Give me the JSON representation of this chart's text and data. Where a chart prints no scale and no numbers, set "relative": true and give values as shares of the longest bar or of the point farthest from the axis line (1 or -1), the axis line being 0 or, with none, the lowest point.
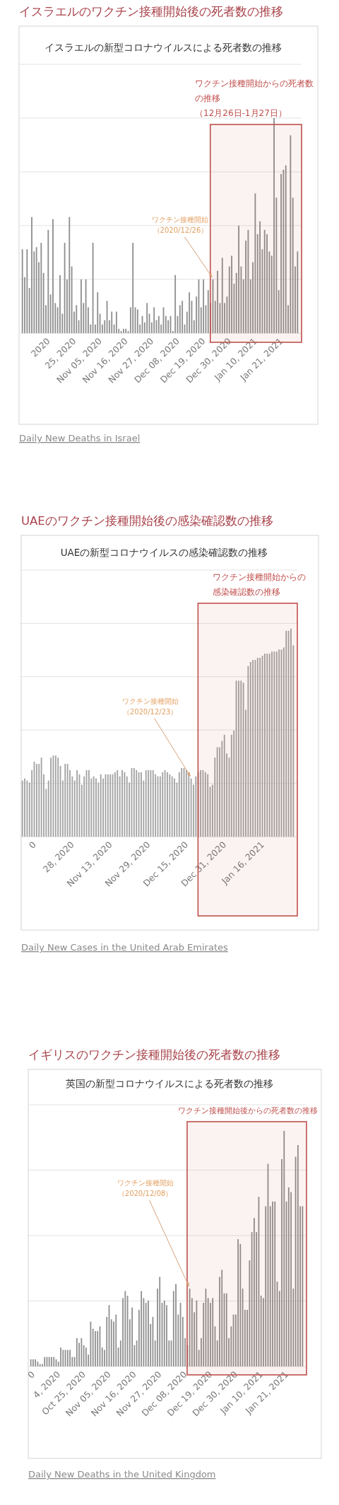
{
  "chart_data": [
    {
      "type": "bar",
      "title": "イスラエルのワクチン接種開始後の死者数の推移",
      "subtitle": "イスラエルの新型コロナウイルスによる死者数の推移",
      "relative": true,
      "grid": "y",
      "tick_labels": "x",
      "color": "#8f8f8f",
      "x": [
        "2020-10-02",
        "2020-10-03",
        "2020-10-04",
        "2020-10-05",
        "2020-10-06",
        "2020-10-07",
        "2020-10-08",
        "2020-10-09",
        "2020-10-10",
        "2020-10-11",
        "2020-10-12",
        "2020-10-13",
        "2020-10-14",
        "2020-10-15",
        "2020-10-16",
        "2020-10-17",
        "2020-10-18",
        "2020-10-19",
        "2020-10-20",
        "2020-10-21",
        "2020-10-22",
        "2020-10-23",
        "2020-10-24",
        "2020-10-25",
        "2020-10-26",
        "2020-10-27",
        "2020-10-28",
        "2020-10-29",
        "2020-10-30",
        "2020-10-31",
        "2020-11-01",
        "2020-11-02",
        "2020-11-03",
        "2020-11-04",
        "2020-11-05",
        "2020-11-06",
        "2020-11-07",
        "2020-11-08",
        "2020-11-09",
        "2020-11-10",
        "2020-11-11",
        "2020-11-12",
        "2020-11-13",
        "2020-11-14",
        "2020-11-15",
        "2020-11-16",
        "2020-11-17",
        "2020-11-18",
        "2020-11-19",
        "2020-11-20",
        "2020-11-21",
        "2020-11-22",
        "2020-11-23",
        "2020-11-24",
        "2020-11-25",
        "2020-11-26",
        "2020-11-27",
        "2020-11-28",
        "2020-11-29",
        "2020-11-30",
        "2020-12-01",
        "2020-12-02",
        "2020-12-03",
        "2020-12-04",
        "2020-12-05",
        "2020-12-06",
        "2020-12-07",
        "2020-12-08",
        "2020-12-09",
        "2020-12-10",
        "2020-12-11",
        "2020-12-12",
        "2020-12-13",
        "2020-12-14",
        "2020-12-15",
        "2020-12-16",
        "2020-12-17",
        "2020-12-18",
        "2020-12-19",
        "2020-12-20",
        "2020-12-21",
        "2020-12-22",
        "2020-12-23",
        "2020-12-24",
        "2020-12-25",
        "2020-12-26",
        "2020-12-27",
        "2020-12-28",
        "2020-12-29",
        "2020-12-30",
        "2020-12-31",
        "2021-01-01",
        "2021-01-02",
        "2021-01-03",
        "2021-01-04",
        "2021-01-05",
        "2021-01-06",
        "2021-01-07",
        "2021-01-08",
        "2021-01-09",
        "2021-01-10",
        "2021-01-11",
        "2021-01-12",
        "2021-01-13",
        "2021-01-14",
        "2021-01-15",
        "2021-01-16",
        "2021-01-17",
        "2021-01-18",
        "2021-01-19",
        "2021-01-20",
        "2021-01-21",
        "2021-01-22",
        "2021-01-23",
        "2021-01-24",
        "2021-01-25",
        "2021-01-26",
        "2021-01-27"
      ],
      "values": [
        0.39,
        0.26,
        0.39,
        0.21,
        0.54,
        0.38,
        0.4,
        0.33,
        0.42,
        0.28,
        0.13,
        0.48,
        0.18,
        0.53,
        0.14,
        0.12,
        0.27,
        0.09,
        0.42,
        0.25,
        0.54,
        0.31,
        0.1,
        0.13,
        0.06,
        0.25,
        0.14,
        0.25,
        0.12,
        0.04,
        0.42,
        0.04,
        0.19,
        0.09,
        0.04,
        0.06,
        0.15,
        0.06,
        0.1,
        0.04,
        0.1,
        0.02,
        0.01,
        0.02,
        0.02,
        0.01,
        0.12,
        0.42,
        0.12,
        0.11,
        0.04,
        0.08,
        0.05,
        0.14,
        0.09,
        0.05,
        0.12,
        0.06,
        0.08,
        0.04,
        0.12,
        0.08,
        0.06,
        0.08,
        0.01,
        0.27,
        0.08,
        0.13,
        0.15,
        0.04,
        0.1,
        0.19,
        0.15,
        0.06,
        0.17,
        0.25,
        0.12,
        0.25,
        0.13,
        0.2,
        0.14,
        0.25,
        0.15,
        0.29,
        0.14,
        0.35,
        0.14,
        0.17,
        0.31,
        0.36,
        0.23,
        0.28,
        0.5,
        0.31,
        0.25,
        0.43,
        0.48,
        0.25,
        0.33,
        0.65,
        0.46,
        0.52,
        0.39,
        0.48,
        0.46,
        0.38,
        0.36,
        1.0,
        0.63,
        0.2,
        0.74,
        0.76,
        0.78,
        0.13,
        0.92,
        0.63,
        0.31,
        0.38
      ],
      "xlim": [
        "2020-10-02",
        "2021-01-27"
      ],
      "xticks": [
        {
          "value": "2020-10-14",
          "label": "2020"
        },
        {
          "value": "2020-10-25",
          "label": "25, 2020"
        },
        {
          "value": "2020-11-05",
          "label": "Nov 05, 2020"
        },
        {
          "value": "2020-11-16",
          "label": "Nov 16, 2020"
        },
        {
          "value": "2020-11-27",
          "label": "Nov 27, 2020"
        },
        {
          "value": "2020-12-08",
          "label": "Dec 08, 2020"
        },
        {
          "value": "2020-12-19",
          "label": "Dec 19, 2020"
        },
        {
          "value": "2020-12-30",
          "label": "Dec 30, 2020"
        },
        {
          "value": "2021-01-10",
          "label": "Jan 10, 2021"
        },
        {
          "value": "2021-01-21",
          "label": "Jan 21, 2021"
        }
      ],
      "bands": [
        {
          "axis": "x",
          "from": "2020-12-22",
          "to": "2021-01-27",
          "label": "ワクチン接種開始からの死者数の推移（12月26日-1月27日）",
          "color": "#c0504d"
        }
      ],
      "annotations": [
        {
          "text": "ワクチン接種開始（2020/12/26）",
          "x": "2020-12-22",
          "y": 0.25
        },
        "Daily New Deaths in Israel"
      ]
    },
    {
      "type": "bar",
      "title": "UAEのワクチン接種開始後の感染確認数の推移",
      "subtitle": "UAEの新型コロナウイルスの感染確認数の推移",
      "relative": true,
      "grid": "y",
      "tick_labels": "x",
      "color": "#a3a3a3",
      "x": [
        "2020-10-06",
        "2020-10-07",
        "2020-10-08",
        "2020-10-09",
        "2020-10-10",
        "2020-10-11",
        "2020-10-12",
        "2020-10-13",
        "2020-10-14",
        "2020-10-15",
        "2020-10-16",
        "2020-10-17",
        "2020-10-18",
        "2020-10-19",
        "2020-10-20",
        "2020-10-21",
        "2020-10-22",
        "2020-10-23",
        "2020-10-24",
        "2020-10-25",
        "2020-10-26",
        "2020-10-27",
        "2020-10-28",
        "2020-10-29",
        "2020-10-30",
        "2020-10-31",
        "2020-11-01",
        "2020-11-02",
        "2020-11-03",
        "2020-11-04",
        "2020-11-05",
        "2020-11-06",
        "2020-11-07",
        "2020-11-08",
        "2020-11-09",
        "2020-11-10",
        "2020-11-11",
        "2020-11-12",
        "2020-11-13",
        "2020-11-14",
        "2020-11-15",
        "2020-11-16",
        "2020-11-17",
        "2020-11-18",
        "2020-11-19",
        "2020-11-20",
        "2020-11-21",
        "2020-11-22",
        "2020-11-23",
        "2020-11-24",
        "2020-11-25",
        "2020-11-26",
        "2020-11-27",
        "2020-11-28",
        "2020-11-29",
        "2020-11-30",
        "2020-12-01",
        "2020-12-02",
        "2020-12-03",
        "2020-12-04",
        "2020-12-05",
        "2020-12-06",
        "2020-12-07",
        "2020-12-08",
        "2020-12-09",
        "2020-12-10",
        "2020-12-11",
        "2020-12-12",
        "2020-12-13",
        "2020-12-14",
        "2020-12-15",
        "2020-12-16",
        "2020-12-17",
        "2020-12-18",
        "2020-12-19",
        "2020-12-20",
        "2020-12-21",
        "2020-12-22",
        "2020-12-23",
        "2020-12-24",
        "2020-12-25",
        "2020-12-26",
        "2020-12-27",
        "2020-12-28",
        "2020-12-29",
        "2020-12-30",
        "2020-12-31",
        "2021-01-01",
        "2021-01-02",
        "2021-01-03",
        "2021-01-04",
        "2021-01-05",
        "2021-01-06",
        "2021-01-07",
        "2021-01-08",
        "2021-01-09",
        "2021-01-10",
        "2021-01-11",
        "2021-01-12",
        "2021-01-13",
        "2021-01-14",
        "2021-01-15",
        "2021-01-16",
        "2021-01-17",
        "2021-01-18",
        "2021-01-19",
        "2021-01-20",
        "2021-01-21",
        "2021-01-22",
        "2021-01-23",
        "2021-01-24",
        "2021-01-25",
        "2021-01-26",
        "2021-01-27",
        "2021-01-28"
      ],
      "values": [
        0.27,
        0.28,
        0.27,
        0.26,
        0.32,
        0.36,
        0.35,
        0.35,
        0.38,
        0.3,
        0.23,
        0.27,
        0.38,
        0.39,
        0.39,
        0.38,
        0.34,
        0.27,
        0.35,
        0.35,
        0.32,
        0.29,
        0.27,
        0.32,
        0.3,
        0.25,
        0.29,
        0.32,
        0.32,
        0.28,
        0.29,
        0.28,
        0.26,
        0.3,
        0.28,
        0.3,
        0.3,
        0.3,
        0.3,
        0.31,
        0.32,
        0.29,
        0.32,
        0.31,
        0.29,
        0.26,
        0.33,
        0.33,
        0.32,
        0.31,
        0.31,
        0.27,
        0.32,
        0.32,
        0.32,
        0.32,
        0.3,
        0.29,
        0.29,
        0.31,
        0.32,
        0.31,
        0.3,
        0.29,
        0.28,
        0.26,
        0.31,
        0.33,
        0.33,
        0.32,
        0.31,
        0.28,
        0.25,
        0.29,
        0.31,
        0.32,
        0.32,
        0.31,
        0.3,
        0.24,
        0.25,
        0.38,
        0.43,
        0.43,
        0.46,
        0.49,
        0.4,
        0.38,
        0.49,
        0.51,
        0.75,
        0.75,
        0.75,
        0.74,
        0.61,
        0.82,
        0.84,
        0.85,
        0.85,
        0.86,
        0.86,
        0.87,
        0.88,
        0.88,
        0.88,
        0.89,
        0.89,
        0.89,
        0.9,
        0.9,
        0.91,
        0.99,
        0.99,
        1.0,
        0.92
      ],
      "xlim": [
        "2020-10-06",
        "2021-01-28"
      ],
      "xticks": [
        {
          "value": "2020-10-12",
          "label": "0"
        },
        {
          "value": "2020-10-28",
          "label": "28, 2020"
        },
        {
          "value": "2020-11-13",
          "label": "Nov 13, 2020"
        },
        {
          "value": "2020-11-29",
          "label": "Nov 29, 2020"
        },
        {
          "value": "2020-12-15",
          "label": "Dec 15, 2020"
        },
        {
          "value": "2020-12-31",
          "label": "Dec 31, 2020"
        },
        {
          "value": "2021-01-16",
          "label": "Jan 16, 2021"
        }
      ],
      "bands": [
        {
          "axis": "x",
          "from": "2020-12-20",
          "to": "2021-01-28",
          "label": "ワクチン接種開始からの感染確認数の推移",
          "color": "#c0504d"
        }
      ],
      "annotations": [
        {
          "text": "ワクチン接種開始（2020/12/23）",
          "x": "2020-12-16",
          "y": 0.28
        },
        "Daily New Cases in the United Arab Emirates"
      ]
    },
    {
      "type": "bar",
      "title": "イギリスのワクチン接種開始後の死者数の推移",
      "subtitle": "英国の新型コロナウイルスによる死者数の推移",
      "relative": true,
      "grid": "y",
      "tick_labels": "x",
      "color": "#8f8f8f",
      "x": [
        "2020-10-01",
        "2020-10-02",
        "2020-10-03",
        "2020-10-04",
        "2020-10-05",
        "2020-10-06",
        "2020-10-07",
        "2020-10-08",
        "2020-10-09",
        "2020-10-10",
        "2020-10-11",
        "2020-10-12",
        "2020-10-13",
        "2020-10-14",
        "2020-10-15",
        "2020-10-16",
        "2020-10-17",
        "2020-10-18",
        "2020-10-19",
        "2020-10-20",
        "2020-10-21",
        "2020-10-22",
        "2020-10-23",
        "2020-10-24",
        "2020-10-25",
        "2020-10-26",
        "2020-10-27",
        "2020-10-28",
        "2020-10-29",
        "2020-10-30",
        "2020-10-31",
        "2020-11-01",
        "2020-11-02",
        "2020-11-03",
        "2020-11-04",
        "2020-11-05",
        "2020-11-06",
        "2020-11-07",
        "2020-11-08",
        "2020-11-09",
        "2020-11-10",
        "2020-11-11",
        "2020-11-12",
        "2020-11-13",
        "2020-11-14",
        "2020-11-15",
        "2020-11-16",
        "2020-11-17",
        "2020-11-18",
        "2020-11-19",
        "2020-11-20",
        "2020-11-21",
        "2020-11-22",
        "2020-11-23",
        "2020-11-24",
        "2020-11-25",
        "2020-11-26",
        "2020-11-27",
        "2020-11-28",
        "2020-11-29",
        "2020-11-30",
        "2020-12-01",
        "2020-12-02",
        "2020-12-03",
        "2020-12-04",
        "2020-12-05",
        "2020-12-06",
        "2020-12-07",
        "2020-12-08",
        "2020-12-09",
        "2020-12-10",
        "2020-12-11",
        "2020-12-12",
        "2020-12-13",
        "2020-12-14",
        "2020-12-15",
        "2020-12-16",
        "2020-12-17",
        "2020-12-18",
        "2020-12-19",
        "2020-12-20",
        "2020-12-21",
        "2020-12-22",
        "2020-12-23",
        "2020-12-24",
        "2020-12-25",
        "2020-12-26",
        "2020-12-27",
        "2020-12-28",
        "2020-12-29",
        "2020-12-30",
        "2020-12-31",
        "2021-01-01",
        "2021-01-02",
        "2021-01-03",
        "2021-01-04",
        "2021-01-05",
        "2021-01-06",
        "2021-01-07",
        "2021-01-08",
        "2021-01-09",
        "2021-01-10",
        "2021-01-11",
        "2021-01-12",
        "2021-01-13",
        "2021-01-14",
        "2021-01-15",
        "2021-01-16",
        "2021-01-17",
        "2021-01-18",
        "2021-01-19",
        "2021-01-20",
        "2021-01-21",
        "2021-01-22",
        "2021-01-23",
        "2021-01-24",
        "2021-01-25",
        "2021-01-26",
        "2021-01-27"
      ],
      "values": [
        0.03,
        0.03,
        0.03,
        0.02,
        0.01,
        0.01,
        0.04,
        0.04,
        0.04,
        0.04,
        0.04,
        0.03,
        0.02,
        0.08,
        0.07,
        0.07,
        0.07,
        0.07,
        0.04,
        0.04,
        0.12,
        0.1,
        0.12,
        0.09,
        0.08,
        0.05,
        0.19,
        0.16,
        0.15,
        0.15,
        0.17,
        0.08,
        0.07,
        0.21,
        0.26,
        0.2,
        0.19,
        0.22,
        0.08,
        0.11,
        0.29,
        0.32,
        0.3,
        0.2,
        0.25,
        0.09,
        0.11,
        0.24,
        0.32,
        0.29,
        0.27,
        0.28,
        0.18,
        0.21,
        0.11,
        0.33,
        0.38,
        0.27,
        0.28,
        0.26,
        0.11,
        0.11,
        0.32,
        0.35,
        0.22,
        0.27,
        0.21,
        0.12,
        0.09,
        0.33,
        0.29,
        0.23,
        0.28,
        0.07,
        0.12,
        0.27,
        0.33,
        0.29,
        0.27,
        0.29,
        0.17,
        0.11,
        0.38,
        0.41,
        0.31,
        0.31,
        0.12,
        0.17,
        0.22,
        0.22,
        0.54,
        0.52,
        0.33,
        0.24,
        0.24,
        0.45,
        0.57,
        0.63,
        0.57,
        0.72,
        0.3,
        0.29,
        0.68,
        0.86,
        0.68,
        0.7,
        0.7,
        0.36,
        0.32,
        0.88,
        1.0,
        0.7,
        0.76,
        0.74,
        0.33,
        0.89,
        0.94,
        0.68,
        0.68
      ],
      "xlim": [
        "2020-10-01",
        "2021-01-27"
      ],
      "xticks": [
        {
          "value": "2020-10-03",
          "label": "0"
        },
        {
          "value": "2020-10-14",
          "label": "4, 2020"
        },
        {
          "value": "2020-10-25",
          "label": "Oct 25, 2020"
        },
        {
          "value": "2020-11-05",
          "label": "Nov 05, 2020"
        },
        {
          "value": "2020-11-16",
          "label": "Nov 16, 2020"
        },
        {
          "value": "2020-11-27",
          "label": "Nov 27, 2020"
        },
        {
          "value": "2020-12-08",
          "label": "Dec 08, 2020"
        },
        {
          "value": "2020-12-19",
          "label": "Dec 19, 2020"
        },
        {
          "value": "2020-12-30",
          "label": "Dec 30, 2020"
        },
        {
          "value": "2021-01-10",
          "label": "Jan 10, 2021"
        },
        {
          "value": "2021-01-21",
          "label": "Jan 21, 2021"
        }
      ],
      "bands": [
        {
          "axis": "x",
          "from": "2020-12-09",
          "to": "2021-01-27",
          "label": "ワクチン接種開始後からの死者数の推移",
          "color": "#c0504d"
        }
      ],
      "annotations": [
        {
          "text": "ワクチン接種開始（2020/12/08）",
          "x": "2020-12-09",
          "y": 0.33
        },
        "Daily New Deaths in the United Kingdom"
      ]
    }
  ]
}
